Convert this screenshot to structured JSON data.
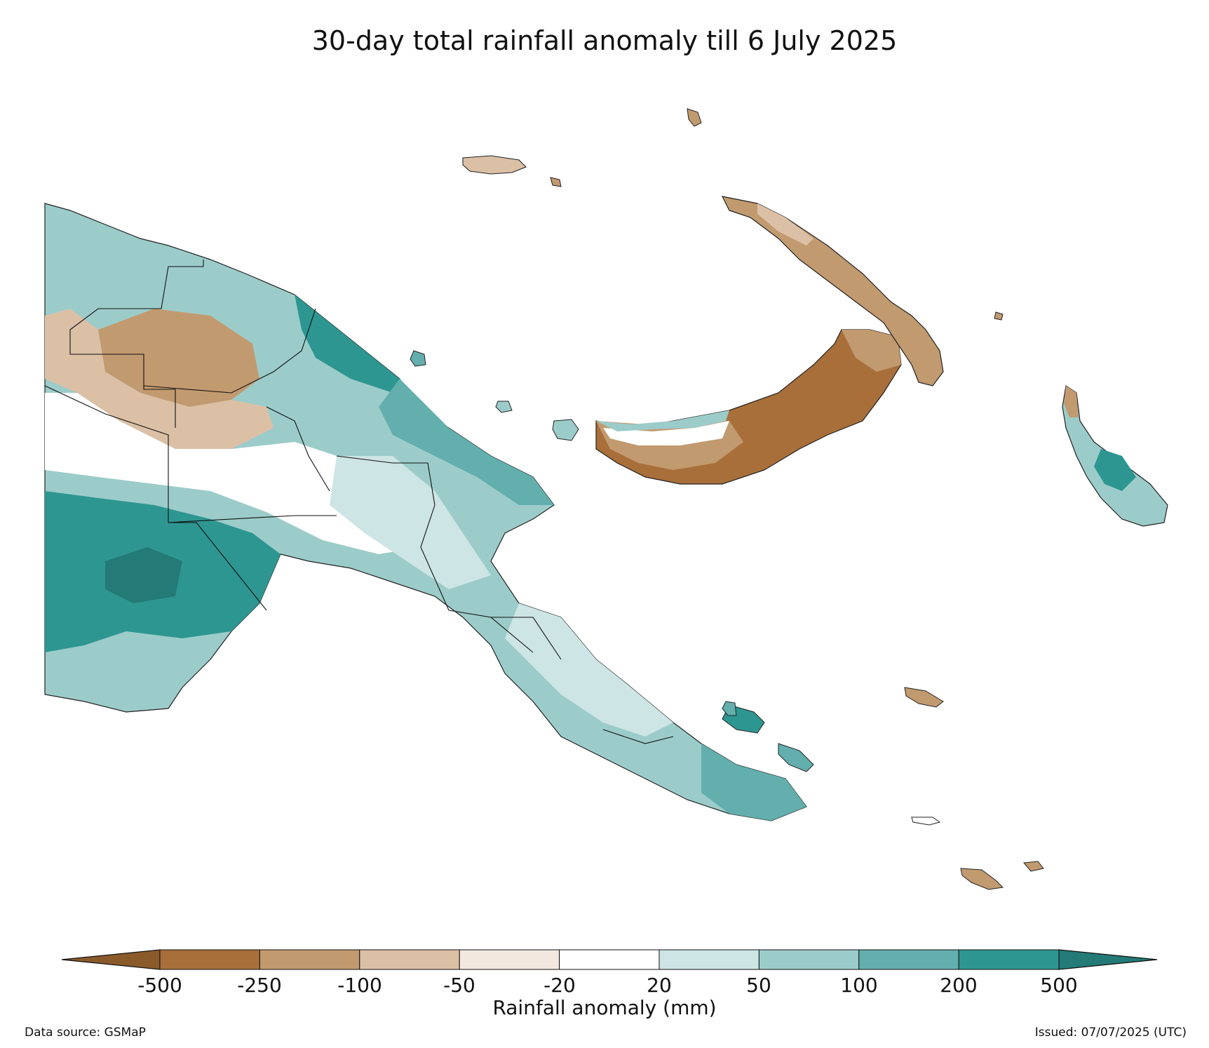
{
  "title": "30-day total rainfall anomaly till 6 July 2025",
  "colorbar": {
    "label": "Rainfall anomaly (mm)",
    "ticks": [
      "-500",
      "-250",
      "-100",
      "-50",
      "-20",
      "20",
      "50",
      "100",
      "200",
      "500"
    ],
    "colors": [
      "#8b5a2b",
      "#a86f3a",
      "#c29a6f",
      "#dbc0a6",
      "#f2e8df",
      "#ffffff",
      "#cde5e4",
      "#9cccca",
      "#62afad",
      "#2e9691",
      "#237a76"
    ],
    "extend": "both"
  },
  "footer": {
    "source": "Data source: GSMaP",
    "issued": "Issued: 07/07/2025 (UTC)"
  },
  "legend_colors": {
    "very_wet": "#2e9691",
    "wet": "#62afad",
    "moderately_wet": "#9cccca",
    "slightly_wet": "#cde5e4",
    "normal": "#ffffff",
    "slightly_dry": "#f2e8df",
    "dry": "#dbc0a6",
    "moderately_dry": "#c29a6f",
    "very_dry": "#a86f3a"
  }
}
